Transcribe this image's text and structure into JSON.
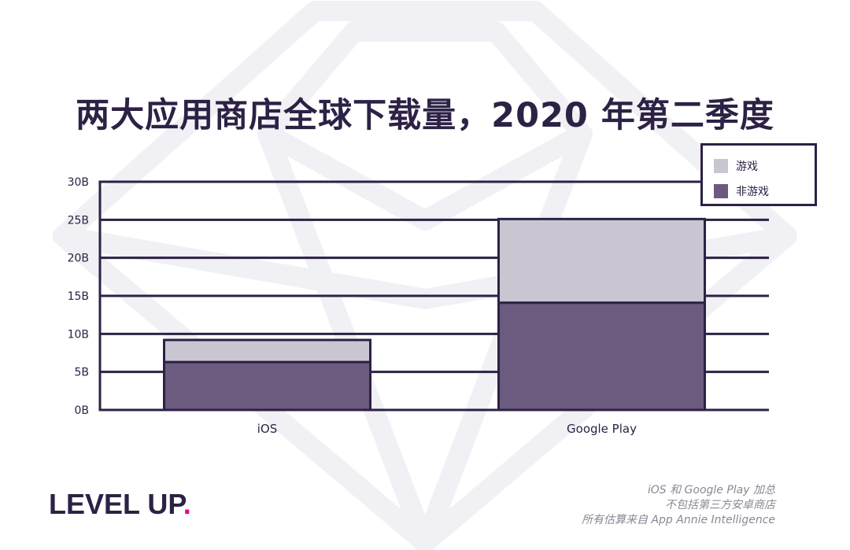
{
  "title": "两大应用商店全球下载量，2020 年第二季度",
  "legend": {
    "items": [
      {
        "label": "游戏",
        "color": "#c9c6d2"
      },
      {
        "label": "非游戏",
        "color": "#6b5b7e"
      }
    ]
  },
  "footer": {
    "logo_text": "LEVEL UP",
    "logo_dot": ".",
    "note_lines": [
      "iOS 和 Google Play 加总",
      "不包括第三方安卓商店",
      "所有估算来自 App Annie Intelligence"
    ]
  },
  "chart_data": {
    "type": "bar",
    "stacked": true,
    "title": "两大应用商店全球下载量，2020 年第二季度",
    "xlabel": "",
    "ylabel": "",
    "categories": [
      "iOS",
      "Google Play"
    ],
    "series": [
      {
        "name": "非游戏",
        "values": [
          6.3,
          14.1
        ],
        "color": "#6b5b7e"
      },
      {
        "name": "游戏",
        "values": [
          2.9,
          11.0
        ],
        "color": "#c9c6d2"
      }
    ],
    "ylim": [
      0,
      30
    ],
    "yticks": [
      0,
      5,
      10,
      15,
      20,
      25,
      30
    ],
    "ytick_labels": [
      "0B",
      "5B",
      "10B",
      "15B",
      "20B",
      "25B",
      "30B"
    ],
    "grid": true,
    "legend_position": "top-right"
  }
}
